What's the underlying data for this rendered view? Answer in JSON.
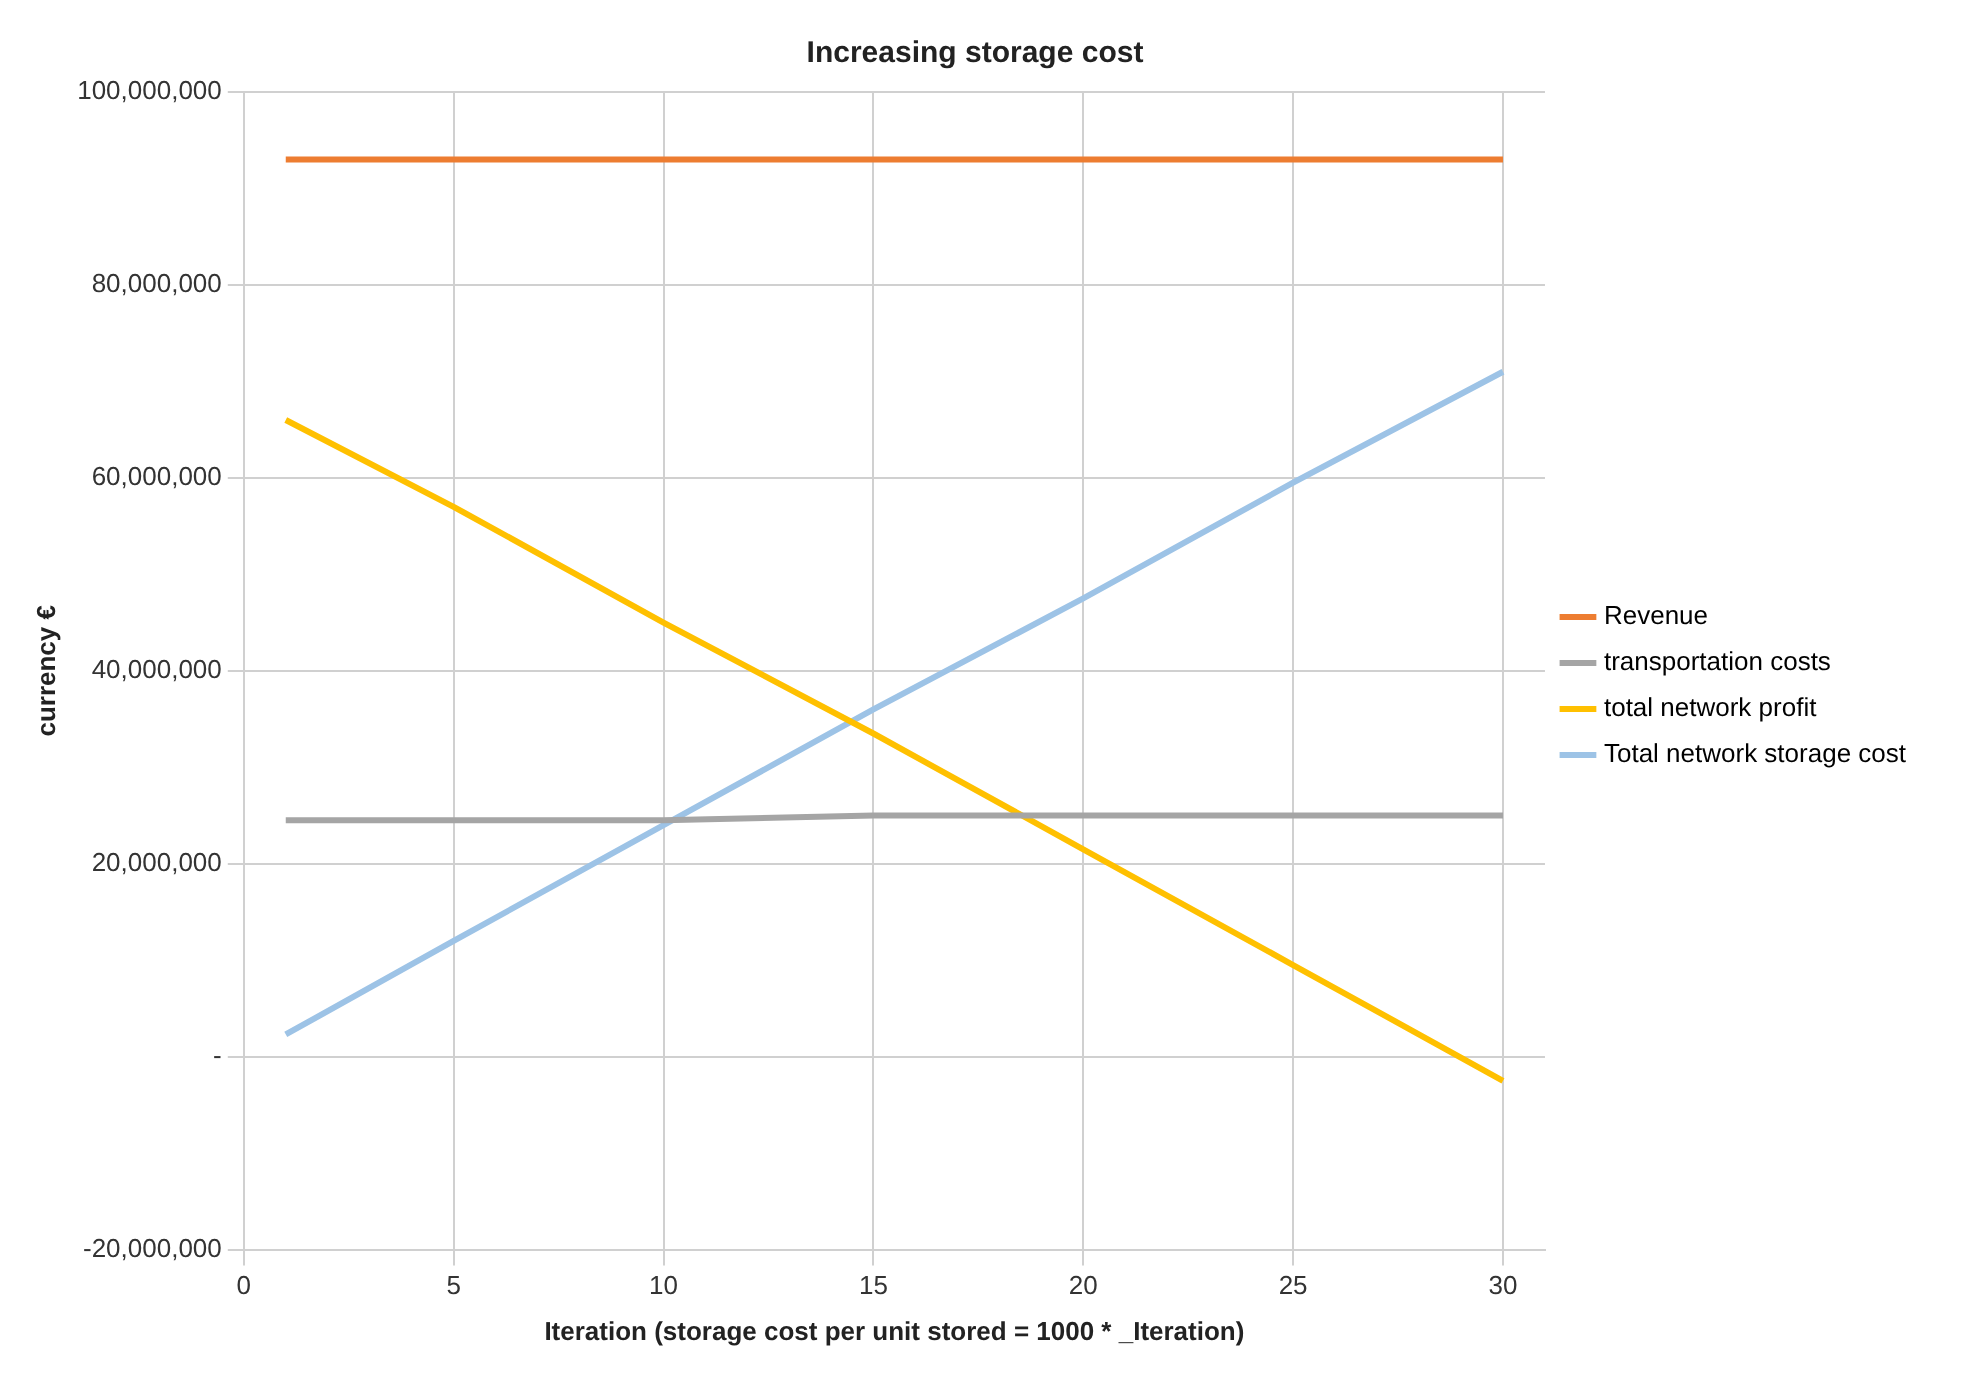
{
  "chart_data": {
    "type": "line",
    "title": "Increasing storage cost",
    "xlabel": "Iteration (storage cost per unit stored = 1000 * _Iteration)",
    "ylabel": "currency €",
    "x": [
      1,
      5,
      10,
      15,
      20,
      25,
      30
    ],
    "series": [
      {
        "name": "Revenue",
        "color": "#ed7d31",
        "values": [
          93000000,
          93000000,
          93000000,
          93000000,
          93000000,
          93000000,
          93000000
        ]
      },
      {
        "name": "transportation costs",
        "color": "#a5a5a5",
        "values": [
          24500000,
          24500000,
          24500000,
          25000000,
          25000000,
          25000000,
          25000000
        ]
      },
      {
        "name": "total network profit",
        "color": "#ffc000",
        "values": [
          66000000,
          57000000,
          45000000,
          33500000,
          21500000,
          9500000,
          -2500000
        ]
      },
      {
        "name": "Total network storage cost",
        "color": "#9dc3e6",
        "values": [
          2300000,
          12000000,
          24000000,
          36000000,
          47500000,
          59500000,
          71000000
        ]
      }
    ],
    "xlim": [
      0,
      31
    ],
    "xticks": [
      0,
      5,
      10,
      15,
      20,
      25,
      30
    ],
    "ylim": [
      -20000000,
      100000000
    ],
    "yticks": [
      {
        "value": -20000000,
        "label": "-20,000,000"
      },
      {
        "value": 0,
        "label": "-"
      },
      {
        "value": 20000000,
        "label": "20,000,000"
      },
      {
        "value": 40000000,
        "label": "40,000,000"
      },
      {
        "value": 60000000,
        "label": "60,000,000"
      },
      {
        "value": 80000000,
        "label": "80,000,000"
      },
      {
        "value": 100000000,
        "label": "100,000,000"
      }
    ],
    "grid": true,
    "legend": "right",
    "marker": "none",
    "line_style": "solid"
  }
}
